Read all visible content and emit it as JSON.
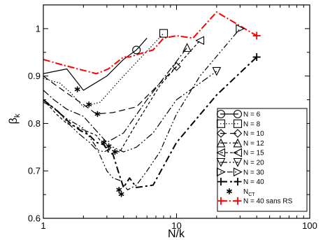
{
  "chart_data": {
    "type": "line",
    "xscale": "log",
    "xlim": [
      1,
      100
    ],
    "ylim": [
      0.6,
      1.05
    ],
    "xlabel": "N/k",
    "ylabel_main": "β",
    "ylabel_sub": "k",
    "xticks": [
      {
        "value": 1,
        "label": "1"
      },
      {
        "value": 10,
        "label": "10"
      },
      {
        "value": 100,
        "label": "100"
      }
    ],
    "yticks": [
      {
        "value": 0.6,
        "label": "0.6"
      },
      {
        "value": 0.7,
        "label": "0.7"
      },
      {
        "value": 0.8,
        "label": "0.8"
      },
      {
        "value": 0.9,
        "label": "0.9"
      },
      {
        "value": 1.0,
        "label": "1"
      }
    ],
    "legend_position": "bottom-right",
    "series": [
      {
        "name": "N = 6",
        "label_main": "N = 6",
        "dash": "",
        "width": 1.2,
        "color": "#000000",
        "marker": "circle",
        "x": [
          1,
          1.5,
          2,
          3,
          4,
          5,
          6
        ],
        "y": [
          0.905,
          0.915,
          0.87,
          0.9,
          0.935,
          0.955,
          0.98
        ],
        "marker_at": [
          5
        ]
      },
      {
        "name": "N = 8",
        "label_main": "N = 8",
        "dash": "1.5,2.5",
        "width": 1.2,
        "color": "#000000",
        "marker": "square",
        "x": [
          1,
          1.33,
          1.6,
          2,
          2.67,
          4,
          8
        ],
        "y": [
          0.895,
          0.885,
          0.865,
          0.835,
          0.845,
          0.9,
          0.99
        ],
        "marker_at": [
          6
        ]
      },
      {
        "name": "N = 10",
        "label_main": "N = 10",
        "dash": "9,5",
        "width": 1.2,
        "color": "#000000",
        "marker": "diamond",
        "x": [
          1,
          1.25,
          1.67,
          2,
          2.5,
          3.33,
          5,
          10
        ],
        "y": [
          0.9,
          0.88,
          0.855,
          0.84,
          0.82,
          0.823,
          0.835,
          0.92
        ],
        "marker_at": [
          7
        ]
      },
      {
        "name": "N = 12",
        "label_main": "N = 12",
        "dash": "10,3,2,3",
        "width": 1.2,
        "color": "#000000",
        "marker": "triangle-up",
        "x": [
          1,
          1.2,
          1.5,
          2,
          2.4,
          3,
          4,
          6,
          12
        ],
        "y": [
          0.87,
          0.85,
          0.83,
          0.815,
          0.79,
          0.76,
          0.78,
          0.85,
          0.96
        ],
        "marker_at": [
          8
        ]
      },
      {
        "name": "N = 15",
        "label_main": "N = 15",
        "dash": "4,3",
        "width": 1.2,
        "color": "#000000",
        "marker": "triangle-left",
        "x": [
          1,
          1.25,
          1.5,
          1.87,
          2.5,
          3,
          3.75,
          5,
          7.5,
          15
        ],
        "y": [
          0.85,
          0.82,
          0.8,
          0.79,
          0.775,
          0.745,
          0.74,
          0.8,
          0.88,
          0.975
        ],
        "marker_at": [
          9
        ]
      },
      {
        "name": "N = 20",
        "label_main": "N = 20",
        "dash": "10,3,2,3,2,3",
        "width": 1.2,
        "color": "#000000",
        "marker": "triangle-down",
        "x": [
          1,
          1.25,
          1.54,
          1.82,
          2.22,
          2.5,
          2.86,
          3.33,
          4,
          5,
          6.67,
          10,
          20
        ],
        "y": [
          0.845,
          0.83,
          0.8,
          0.78,
          0.76,
          0.745,
          0.74,
          0.75,
          0.74,
          0.75,
          0.78,
          0.85,
          0.91
        ],
        "marker_at": [
          12
        ]
      },
      {
        "name": "N = 30",
        "label_main": "N = 30",
        "dash": "2,3,2,3,8,3",
        "width": 1.2,
        "color": "#000000",
        "marker": "triangle-right",
        "x": [
          1,
          1.5,
          2,
          2.5,
          3,
          3.33,
          3.75,
          4.29,
          5,
          6,
          7.5,
          10,
          15,
          30
        ],
        "y": [
          0.85,
          0.81,
          0.79,
          0.75,
          0.7,
          0.685,
          0.68,
          0.66,
          0.67,
          0.7,
          0.74,
          0.82,
          0.9,
          1.0
        ],
        "marker_at": [
          13
        ]
      },
      {
        "name": "N = 40",
        "label_main": "N = 40",
        "dash": "10,4,3,4",
        "width": 2.0,
        "color": "#000000",
        "marker": "plus",
        "x": [
          1,
          1.29,
          1.6,
          1.9,
          2.22,
          2.5,
          2.86,
          3.08,
          3.33,
          3.64,
          4,
          4.44,
          5,
          6.67,
          10,
          20,
          40
        ],
        "y": [
          0.85,
          0.825,
          0.8,
          0.785,
          0.775,
          0.76,
          0.755,
          0.74,
          0.735,
          0.7,
          0.665,
          0.685,
          0.665,
          0.67,
          0.76,
          0.86,
          0.94
        ],
        "marker_at": [
          16
        ]
      },
      {
        "name": "N_CT",
        "label_main": "N",
        "label_sub": "CT",
        "type": "scatter",
        "marker": "asterisk",
        "color": "#000000",
        "x": [
          1.8,
          2.2,
          2.55,
          2.85,
          3.1,
          3.45,
          3.7,
          3.85
        ],
        "y": [
          0.872,
          0.84,
          0.82,
          0.76,
          0.752,
          0.74,
          0.66,
          0.651
        ]
      },
      {
        "name": "N = 40 sans RS",
        "label_main": "N = 40 sans RS",
        "dash": "10,3,2,3",
        "width": 2.0,
        "color": "#ff0000",
        "marker": "plus",
        "x": [
          1,
          1.33,
          1.82,
          2.5,
          3.08,
          4,
          4.44,
          5,
          6.67,
          8,
          10,
          13.3,
          20,
          40
        ],
        "y": [
          0.935,
          0.925,
          0.915,
          0.905,
          0.915,
          0.94,
          0.94,
          0.945,
          0.955,
          0.98,
          0.985,
          0.98,
          1.035,
          0.985
        ],
        "marker_at": [
          13
        ]
      }
    ]
  }
}
